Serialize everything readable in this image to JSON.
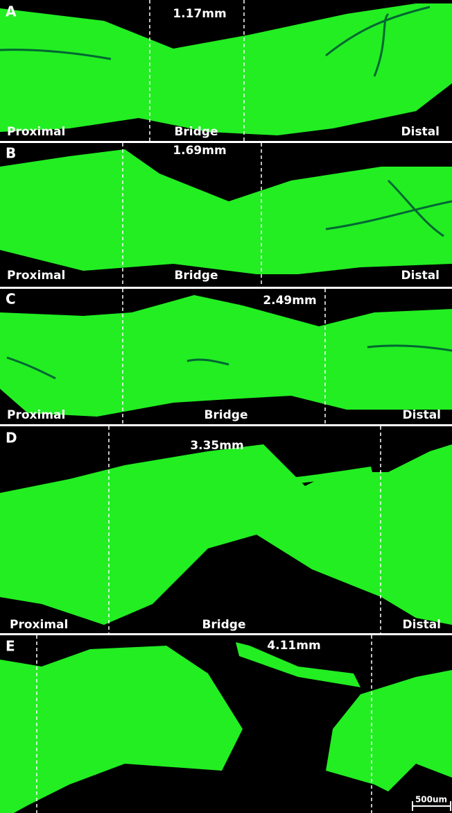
{
  "panels": [
    {
      "letter": "A",
      "measurement": "1.17mm",
      "labels": [
        "Proximal",
        "Bridge",
        "Distal"
      ]
    },
    {
      "letter": "B",
      "measurement": "1.69mm",
      "labels": [
        "Proximal",
        "Bridge",
        "Distal"
      ]
    },
    {
      "letter": "C",
      "measurement": "2.49mm",
      "labels": [
        "Proximal",
        "Bridge",
        "Distal"
      ]
    },
    {
      "letter": "D",
      "measurement": "3.35mm",
      "labels": [
        "Proximal",
        "Bridge",
        "Distal"
      ]
    },
    {
      "letter": "E",
      "measurement": "4.11mm"
    }
  ],
  "scale_bar": "500um"
}
